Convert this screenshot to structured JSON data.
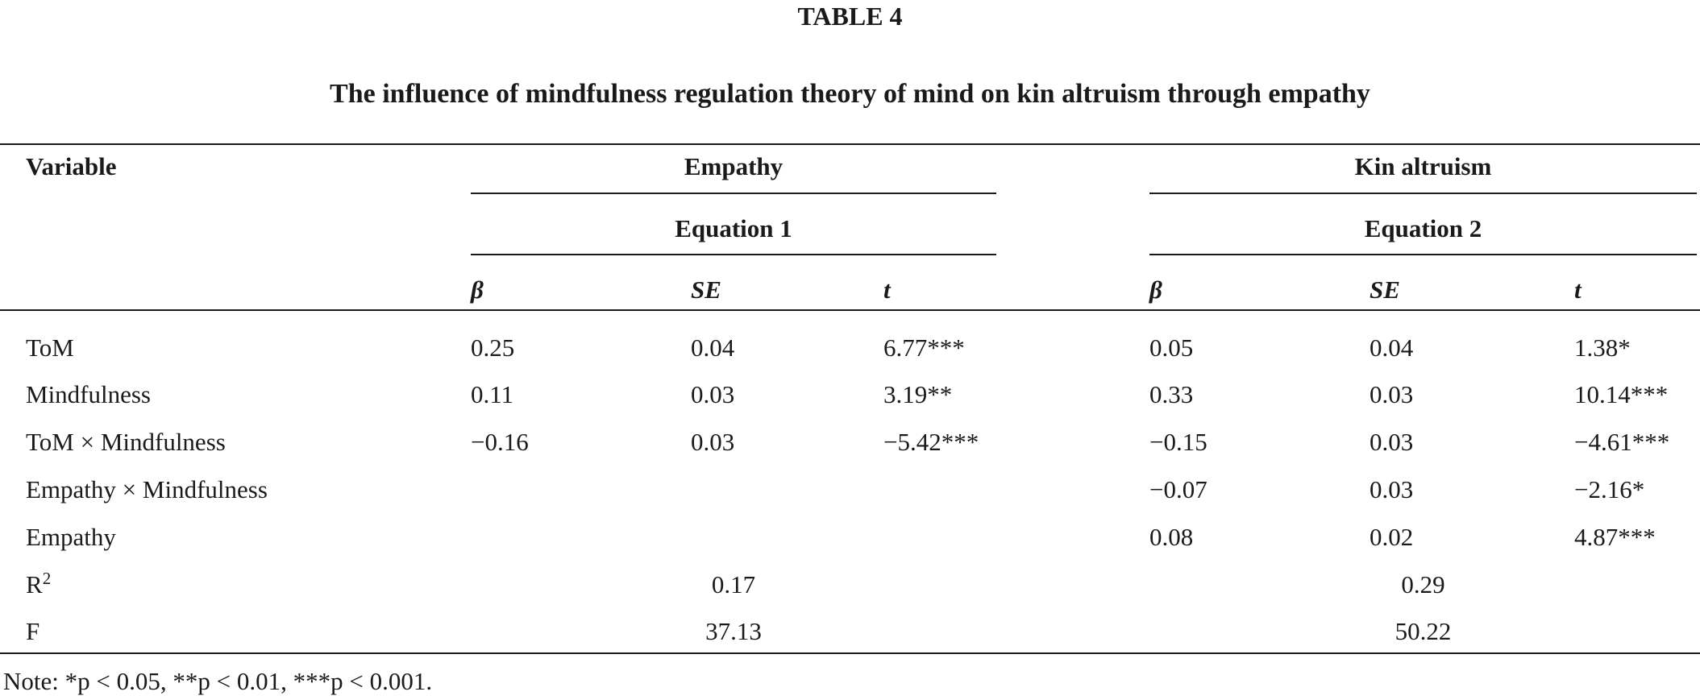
{
  "table": {
    "label": "TABLE 4",
    "title": "The influence of mindfulness regulation theory of mind on kin altruism through empathy",
    "header": {
      "variable": "Variable",
      "group1": "Empathy",
      "group2": "Kin altruism",
      "eq1": "Equation 1",
      "eq2": "Equation 2",
      "cols": [
        "β",
        "SE",
        "t",
        "β",
        "SE",
        "t"
      ]
    },
    "rows": [
      {
        "variable": "ToM",
        "cells": [
          "0.25",
          "0.04",
          "6.77***",
          "0.05",
          "0.04",
          "1.38*"
        ]
      },
      {
        "variable": "Mindfulness",
        "cells": [
          "0.11",
          "0.03",
          "3.19**",
          "0.33",
          "0.03",
          "10.14***"
        ]
      },
      {
        "variable": "ToM × Mindfulness",
        "cells": [
          "−0.16",
          "0.03",
          "−5.42***",
          "−0.15",
          "0.03",
          "−4.61***"
        ]
      },
      {
        "variable": "Empathy × Mindfulness",
        "cells": [
          "",
          "",
          "",
          "−0.07",
          "0.03",
          "−2.16*"
        ]
      },
      {
        "variable": "Empathy",
        "cells": [
          "",
          "",
          "",
          "0.08",
          "0.02",
          "4.87***"
        ]
      }
    ],
    "r2": {
      "label_base": "R",
      "label_sup": "2",
      "eq1": "0.17",
      "eq2": "0.29"
    },
    "f": {
      "label": "F",
      "eq1": "37.13",
      "eq2": "50.22"
    },
    "note": "Note: *p < 0.05, **p < 0.01, ***p < 0.001."
  }
}
